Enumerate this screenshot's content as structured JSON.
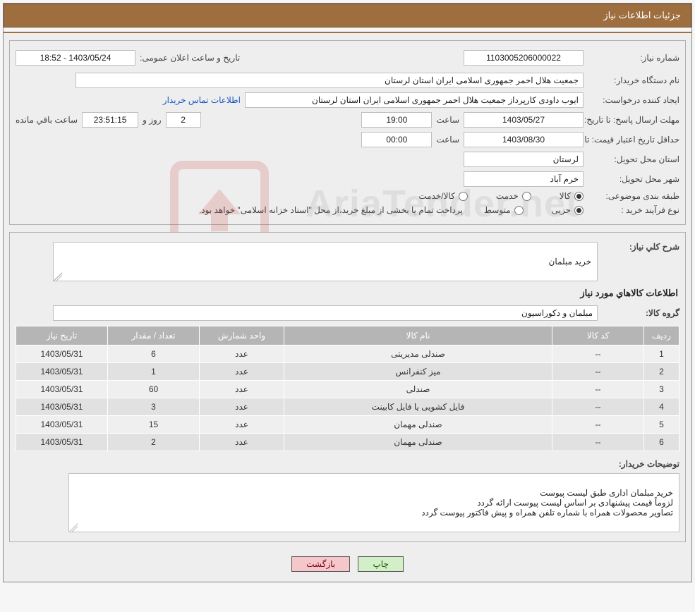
{
  "header": {
    "title": "جزئیات اطلاعات نیاز"
  },
  "fields": {
    "need_number_label": "شماره نیاز:",
    "need_number": "1103005206000022",
    "announce_datetime_label": "تاریخ و ساعت اعلان عمومی:",
    "announce_datetime": "1403/05/24 - 18:52",
    "buyer_org_label": "نام دستگاه خریدار:",
    "buyer_org": "جمعیت هلال احمر جمهوری اسلامی ایران استان لرستان",
    "requester_label": "ایجاد کننده درخواست:",
    "requester": "ایوب داودی کارپرداز جمعیت هلال احمر جمهوری اسلامی ایران استان لرستان",
    "buyer_contact_link": "اطلاعات تماس خریدار",
    "deadline_label": "مهلت ارسال پاسخ:",
    "until_date_label": "تا تاریخ:",
    "deadline_date": "1403/05/27",
    "hour_label": "ساعت",
    "deadline_hour": "19:00",
    "days_and_label": "روز و",
    "days_remaining": "2",
    "countdown": "23:51:15",
    "hours_remaining_label": "ساعت باقي مانده",
    "min_validity_label": "حداقل تاریخ اعتبار قیمت:",
    "min_validity_date": "1403/08/30",
    "min_validity_hour": "00:00",
    "delivery_province_label": "استان محل تحویل:",
    "delivery_province": "لرستان",
    "delivery_city_label": "شهر محل تحویل:",
    "delivery_city": "خرم آباد",
    "subject_class_label": "طبقه بندی موضوعی:",
    "subject_goods": "کالا",
    "subject_service": "خدمت",
    "subject_goods_service": "کالا/خدمت",
    "purchase_type_label": "نوع فرآیند خرید :",
    "purchase_type_minor": "جزیی",
    "purchase_type_medium": "متوسط",
    "payment_note": "پرداخت تمام یا بخشی از مبلغ خرید،از محل \"اسناد خزانه اسلامی\" خواهد بود."
  },
  "need": {
    "summary_label": "شرح کلي نياز:",
    "summary": "خرید مبلمان",
    "goods_info_title": "اطلاعات کالاهاي مورد نياز",
    "goods_group_label": "گروه کالا:",
    "goods_group": "مبلمان و دکوراسیون",
    "buyer_notes_label": "توضیحات خریدار:",
    "buyer_notes": "خرید مبلمان اداری طبق لیست پیوست\nلزوماً قیمت پیشنهادی بر اساس لیست پیوست ارائه گردد\nتصاویر محصولات همراه با شماره تلفن همراه و پیش فاکتور پیوست گردد"
  },
  "table": {
    "columns": [
      "ردیف",
      "کد کالا",
      "نام کالا",
      "واحد شمارش",
      "تعداد / مقدار",
      "تاریخ نیاز"
    ],
    "col_widths": [
      "50px",
      "130px",
      "auto",
      "120px",
      "130px",
      "130px"
    ],
    "rows": [
      [
        "1",
        "--",
        "صندلی مدیریتی",
        "عدد",
        "6",
        "1403/05/31"
      ],
      [
        "2",
        "--",
        "میز کنفرانس",
        "عدد",
        "1",
        "1403/05/31"
      ],
      [
        "3",
        "--",
        "صندلی",
        "عدد",
        "60",
        "1403/05/31"
      ],
      [
        "4",
        "--",
        "فایل کشویی یا فایل کابینت",
        "عدد",
        "3",
        "1403/05/31"
      ],
      [
        "5",
        "--",
        "صندلی مهمان",
        "عدد",
        "15",
        "1403/05/31"
      ],
      [
        "6",
        "--",
        "صندلی مهمان",
        "عدد",
        "2",
        "1403/05/31"
      ]
    ]
  },
  "buttons": {
    "print": "چاپ",
    "back": "بازگشت"
  },
  "watermark": {
    "text": "AriaTender.net"
  },
  "colors": {
    "header_bg": "#9e6e3f",
    "header_border": "#6b4a28",
    "box_border": "#b0b0b0",
    "input_border": "#bfbfbf",
    "th_bg": "#b5b5b5",
    "td_bg_odd": "#efefef",
    "td_bg_even": "#e1e1e1",
    "link": "#1a56c4",
    "btn_print_bg": "#d2efc8",
    "btn_back_bg": "#f5c7cb"
  }
}
